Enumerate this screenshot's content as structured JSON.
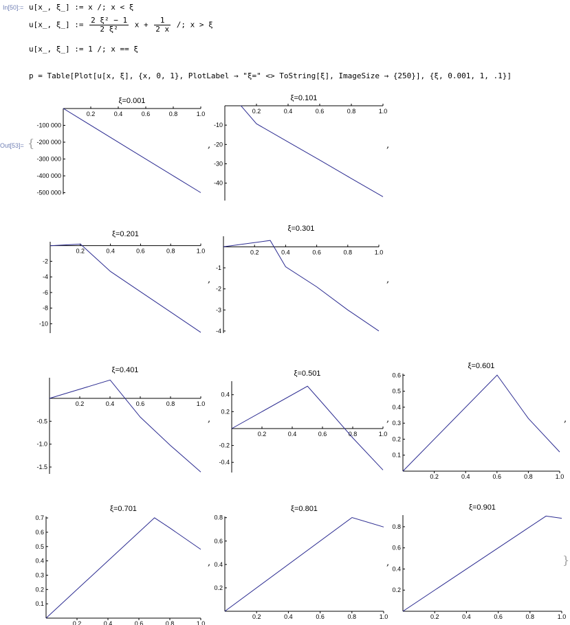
{
  "input": {
    "label": "In[50]:=",
    "line1": [
      "u[x_, ξ_] := x /; x < ξ"
    ],
    "line2": {
      "lhs": "u[x_, ξ_] :=",
      "frac1_num": "2 ξ² − 1",
      "frac1_den": "2 ξ²",
      "mid": "x +",
      "frac2_num": "1",
      "frac2_den": "2 x",
      "cond": "/; x > ξ"
    },
    "line3": "u[x_, ξ_] := 1 /; x == ξ",
    "line4": "p = Table[Plot[u[x, ξ], {x, 0, 1}, PlotLabel → \"ξ=\" <> ToString[ξ], ImageSize → {250}], {ξ, 0.001, 1, .1}]"
  },
  "output": {
    "label": "Out[53]=",
    "open_brace": "{",
    "close_brace": "}",
    "separator": ","
  },
  "chart_data": [
    {
      "type": "line",
      "title": "ξ=0.001",
      "xlim": [
        0,
        1
      ],
      "ylim": [
        -510000,
        0
      ],
      "xticks": [
        0.2,
        0.4,
        0.6,
        0.8,
        1.0
      ],
      "xtick_labels": [
        "0.2",
        "0.4",
        "0.6",
        "0.8",
        "1.0"
      ],
      "yticks": [
        -100000,
        -200000,
        -300000,
        -400000,
        -500000
      ],
      "ytick_labels": [
        "-100 000",
        "-200 000",
        "-300 000",
        "-400 000",
        "-500 000"
      ],
      "x": [
        0,
        0.001,
        0.5,
        1.0
      ],
      "y": [
        0,
        0.001,
        -249999,
        -499999
      ]
    },
    {
      "type": "line",
      "title": "ξ=0.101",
      "xlim": [
        0,
        1
      ],
      "ylim": [
        -49,
        0
      ],
      "xticks": [
        0.2,
        0.4,
        0.6,
        0.8,
        1.0
      ],
      "xtick_labels": [
        "0.2",
        "0.4",
        "0.6",
        "0.8",
        "1.0"
      ],
      "yticks": [
        -10,
        -20,
        -30,
        -40
      ],
      "ytick_labels": [
        "-10",
        "-20",
        "-30",
        "-40"
      ],
      "x": [
        0.101,
        0.2,
        0.4,
        0.6,
        0.8,
        1.0
      ],
      "y": [
        0.101,
        -9.3,
        -18.7,
        -28.1,
        -37.6,
        -47.0
      ]
    },
    {
      "type": "line",
      "title": "ξ=0.201",
      "xlim": [
        0,
        1
      ],
      "ylim": [
        -11.2,
        0.5
      ],
      "xticks": [
        0.2,
        0.4,
        0.6,
        0.8,
        1.0
      ],
      "xtick_labels": [
        "0.2",
        "0.4",
        "0.6",
        "0.8",
        "1.0"
      ],
      "yticks": [
        -2,
        -4,
        -6,
        -8,
        -10
      ],
      "ytick_labels": [
        "-2",
        "-4",
        "-6",
        "-8",
        "-10"
      ],
      "x": [
        0,
        0.201,
        0.4,
        0.6,
        0.8,
        1.0
      ],
      "y": [
        0,
        0.201,
        -3.3,
        -5.9,
        -8.5,
        -11.1
      ]
    },
    {
      "type": "line",
      "title": "ξ=0.301",
      "xlim": [
        0,
        1
      ],
      "ylim": [
        -4.1,
        0.5
      ],
      "xticks": [
        0.2,
        0.4,
        0.6,
        0.8,
        1.0
      ],
      "xtick_labels": [
        "0.2",
        "0.4",
        "0.6",
        "0.8",
        "1.0"
      ],
      "yticks": [
        -1,
        -2,
        -3,
        -4
      ],
      "ytick_labels": [
        "-1",
        "-2",
        "-3",
        "-4"
      ],
      "x": [
        0,
        0.301,
        0.4,
        0.6,
        0.8,
        1.0
      ],
      "y": [
        0,
        0.301,
        -0.95,
        -1.9,
        -3.0,
        -4.0
      ]
    },
    {
      "type": "line",
      "title": "ξ=0.401",
      "xlim": [
        0,
        1
      ],
      "ylim": [
        -1.65,
        0.45
      ],
      "xticks": [
        0.2,
        0.4,
        0.6,
        0.8,
        1.0
      ],
      "xtick_labels": [
        "0.2",
        "0.4",
        "0.6",
        "0.8",
        "1.0"
      ],
      "yticks": [
        -0.5,
        -1.0,
        -1.5
      ],
      "ytick_labels": [
        "-0.5",
        "-1.0",
        "-1.5"
      ],
      "x": [
        0,
        0.401,
        0.6,
        0.8,
        1.0
      ],
      "y": [
        0,
        0.401,
        -0.41,
        -1.03,
        -1.61
      ]
    },
    {
      "type": "line",
      "title": "ξ=0.501",
      "xlim": [
        0,
        1
      ],
      "ylim": [
        -0.52,
        0.56
      ],
      "xticks": [
        0.2,
        0.4,
        0.6,
        0.8,
        1.0
      ],
      "xtick_labels": [
        "0.2",
        "0.4",
        "0.6",
        "0.8",
        "1.0"
      ],
      "yticks": [
        0.4,
        0.2,
        -0.2,
        -0.4
      ],
      "ytick_labels": [
        "0.4",
        "0.2",
        "-0.2",
        "-0.4"
      ],
      "x": [
        0,
        0.501,
        0.6,
        0.8,
        1.0
      ],
      "y": [
        0,
        0.501,
        0.3,
        -0.11,
        -0.49
      ]
    },
    {
      "type": "line",
      "title": "ξ=0.601",
      "xlim": [
        0,
        1
      ],
      "ylim": [
        0,
        0.61
      ],
      "xticks": [
        0.2,
        0.4,
        0.6,
        0.8,
        1.0
      ],
      "xtick_labels": [
        "0.2",
        "0.4",
        "0.6",
        "0.8",
        "1.0"
      ],
      "yticks": [
        0.1,
        0.2,
        0.3,
        0.4,
        0.5,
        0.6
      ],
      "ytick_labels": [
        "0.1",
        "0.2",
        "0.3",
        "0.4",
        "0.5",
        "0.6"
      ],
      "x": [
        0,
        0.601,
        0.8,
        1.0
      ],
      "y": [
        0,
        0.601,
        0.33,
        0.12
      ]
    },
    {
      "type": "line",
      "title": "ξ=0.701",
      "xlim": [
        0,
        1
      ],
      "ylim": [
        0,
        0.71
      ],
      "xticks": [
        0.2,
        0.4,
        0.6,
        0.8,
        1.0
      ],
      "xtick_labels": [
        "0.2",
        "0.4",
        "0.6",
        "0.8",
        "1.0"
      ],
      "yticks": [
        0.1,
        0.2,
        0.3,
        0.4,
        0.5,
        0.6,
        0.7
      ],
      "ytick_labels": [
        "0.1",
        "0.2",
        "0.3",
        "0.4",
        "0.5",
        "0.6",
        "0.7"
      ],
      "x": [
        0,
        0.701,
        0.8,
        1.0
      ],
      "y": [
        0,
        0.701,
        0.63,
        0.48
      ]
    },
    {
      "type": "line",
      "title": "ξ=0.801",
      "xlim": [
        0,
        1
      ],
      "ylim": [
        0,
        0.81
      ],
      "xticks": [
        0.2,
        0.4,
        0.6,
        0.8,
        1.0
      ],
      "xtick_labels": [
        "0.2",
        "0.4",
        "0.6",
        "0.8",
        "1.0"
      ],
      "yticks": [
        0.2,
        0.4,
        0.6,
        0.8
      ],
      "ytick_labels": [
        "0.2",
        "0.4",
        "0.6",
        "0.8"
      ],
      "x": [
        0,
        0.801,
        1.0
      ],
      "y": [
        0,
        0.801,
        0.72
      ]
    },
    {
      "type": "line",
      "title": "ξ=0.901",
      "xlim": [
        0,
        1
      ],
      "ylim": [
        0,
        0.91
      ],
      "xticks": [
        0.2,
        0.4,
        0.6,
        0.8,
        1.0
      ],
      "xtick_labels": [
        "0.2",
        "0.4",
        "0.6",
        "0.8",
        "1.0"
      ],
      "yticks": [
        0.2,
        0.4,
        0.6,
        0.8
      ],
      "ytick_labels": [
        "0.2",
        "0.4",
        "0.6",
        "0.8"
      ],
      "x": [
        0,
        0.901,
        1.0
      ],
      "y": [
        0,
        0.901,
        0.88
      ]
    }
  ]
}
